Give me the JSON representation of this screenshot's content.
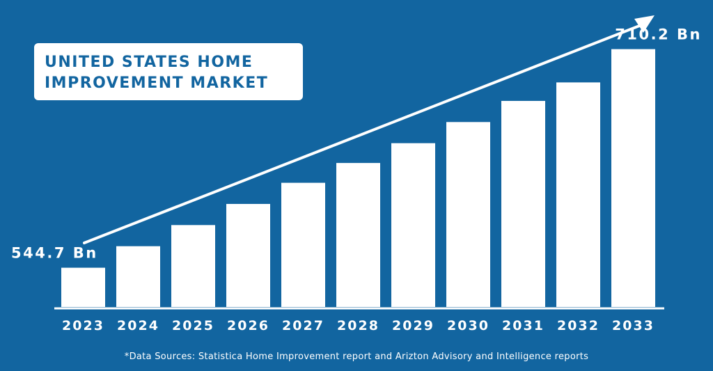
{
  "colors": {
    "background": "#1265a0",
    "bars": "#ffffff",
    "title_text": "#1265a0"
  },
  "title": {
    "line1": "UNITED STATES HOME",
    "line2": "IMPROVEMENT MARKET"
  },
  "source": "*Data Sources: Statistica Home Improvement report and Arizton Advisory and Intelligence reports",
  "chart_data": {
    "type": "bar",
    "categories": [
      "2023",
      "2024",
      "2025",
      "2026",
      "2027",
      "2028",
      "2029",
      "2030",
      "2031",
      "2032",
      "2033"
    ],
    "values": [
      544.7,
      561,
      577,
      593,
      609,
      624,
      639,
      655,
      671,
      685,
      710.2
    ],
    "data_labels": {
      "2023": "544.7 Bn",
      "2033": "710.2 Bn"
    },
    "ylim": [
      515,
      730
    ],
    "grid": false,
    "trend_arrow": true
  }
}
